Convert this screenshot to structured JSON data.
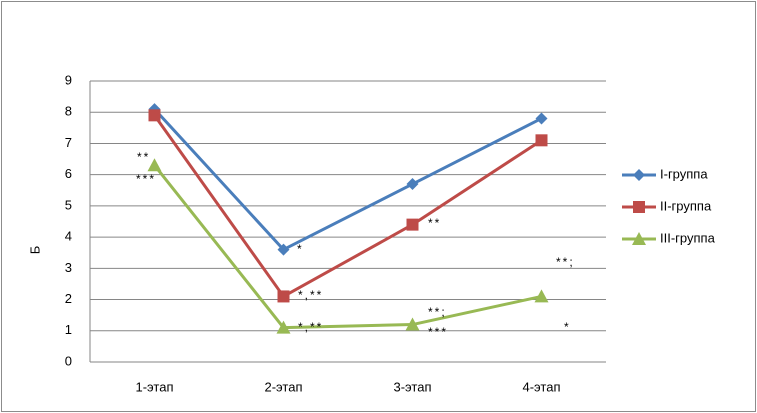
{
  "chart_data": {
    "type": "line",
    "y_label": "Б",
    "categories": [
      "1-этап",
      "2-этап",
      "3-этап",
      "4-этап"
    ],
    "series": [
      {
        "name": "I-группа",
        "color": "#4a7ebb",
        "marker": "diamond",
        "values": [
          8.1,
          3.6,
          5.7,
          7.8
        ]
      },
      {
        "name": "II-группа",
        "color": "#be4b48",
        "marker": "square",
        "values": [
          7.9,
          2.1,
          4.4,
          7.1
        ]
      },
      {
        "name": "III-группа",
        "color": "#98b954",
        "marker": "triangle",
        "values": [
          6.3,
          1.1,
          1.2,
          2.1
        ]
      }
    ],
    "ylim": [
      0,
      9
    ],
    "yticks": [
      0,
      1,
      2,
      3,
      4,
      5,
      6,
      7,
      8,
      9
    ],
    "grid": true,
    "legend": "right",
    "annotations": [
      "**",
      "***",
      "*",
      "*,**",
      "*,**",
      "**",
      "**;",
      "***",
      "**;",
      "*"
    ]
  }
}
